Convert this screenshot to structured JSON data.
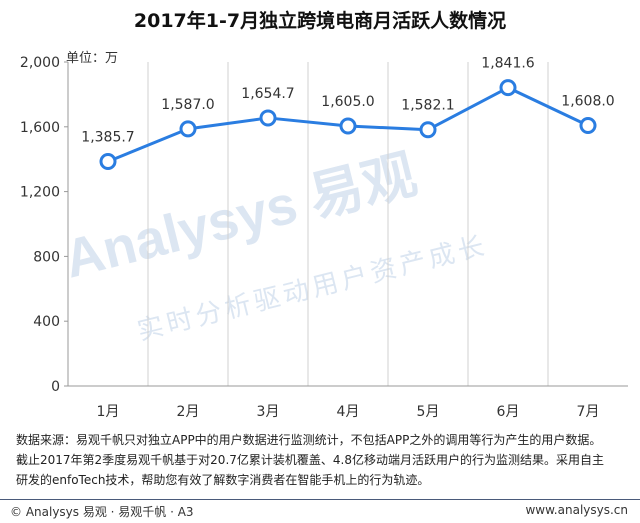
{
  "chart_data": {
    "type": "line",
    "title": "2017年1-7月独立跨境电商月活跃人数情况",
    "unit_label": "单位：万",
    "categories": [
      "1月",
      "2月",
      "3月",
      "4月",
      "5月",
      "6月",
      "7月"
    ],
    "series": [
      {
        "values": [
          1385.7,
          1587.0,
          1654.7,
          1605.0,
          1582.1,
          1841.6,
          1608.0
        ],
        "labels": [
          "1,385.7",
          "1,587.0",
          "1,654.7",
          "1,605.0",
          "1,582.1",
          "1,841.6",
          "1,608.0"
        ],
        "color": "#2a7de1"
      }
    ],
    "y_ticks": [
      "0",
      "400",
      "800",
      "1,200",
      "1,600",
      "2,000"
    ],
    "ylim": [
      0,
      2000
    ],
    "grid": "vertical",
    "xlabel": "",
    "ylabel": ""
  },
  "watermark": {
    "brand": "Analysys 易观",
    "slogan": "实时分析驱动用户资产成长"
  },
  "source_text": {
    "line1": "数据来源：易观千帆只对独立APP中的用户数据进行监测统计，不包括APP之外的调用等行为产生的用户数据。",
    "line2": "截止2017年第2季度易观千帆基于对20.7亿累计装机覆盖、4.8亿移动端月活跃用户的行为监测结果。采用自主",
    "line3": "研发的enfoTech技术，帮助您有效了解数字消费者在智能手机上的行为轨迹。"
  },
  "footer": {
    "left": "© Analysys 易观 · 易观千帆 · A3",
    "right": "www.analysys.cn"
  },
  "colors": {
    "line": "#2a7de1",
    "grid": "#d0d0d0",
    "watermark": "#dce6f2"
  }
}
